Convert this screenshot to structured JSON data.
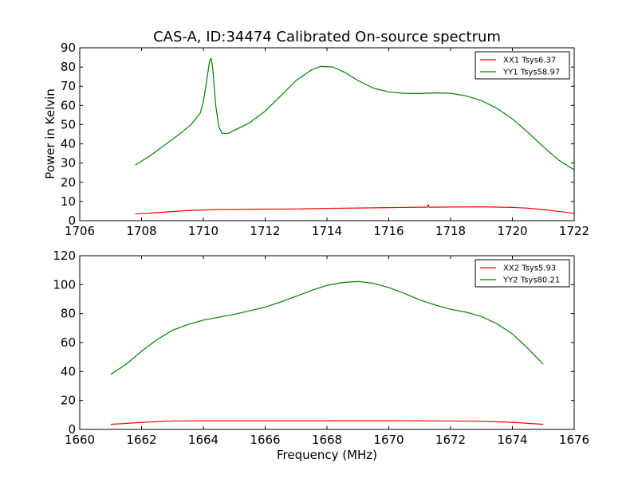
{
  "chart_data": [
    {
      "type": "line",
      "title": "CAS-A, ID:34474 Calibrated On-source spectrum",
      "xlabel": "",
      "ylabel": "Power in Kelvin",
      "xlim": [
        1706,
        1722
      ],
      "ylim": [
        0,
        90
      ],
      "xticks": [
        1706,
        1708,
        1710,
        1712,
        1714,
        1716,
        1718,
        1720,
        1722
      ],
      "yticks": [
        0,
        10,
        20,
        30,
        40,
        50,
        60,
        70,
        80,
        90
      ],
      "grid": false,
      "legend_position": "top-right",
      "series": [
        {
          "name": "XX1 Tsys6.37",
          "color": "#ff0000",
          "points": [
            [
              1707.8,
              3.5
            ],
            [
              1708.5,
              4.2
            ],
            [
              1709.5,
              5.3
            ],
            [
              1710.5,
              5.8
            ],
            [
              1712,
              6.0
            ],
            [
              1713,
              6.1
            ],
            [
              1714,
              6.4
            ],
            [
              1715,
              6.6
            ],
            [
              1716,
              6.8
            ],
            [
              1717,
              7.0
            ],
            [
              1717.25,
              7.0
            ],
            [
              1717.28,
              8.3
            ],
            [
              1717.31,
              7.0
            ],
            [
              1718,
              7.1
            ],
            [
              1719,
              7.2
            ],
            [
              1720,
              6.9
            ],
            [
              1720.5,
              6.5
            ],
            [
              1721,
              5.8
            ],
            [
              1721.5,
              4.8
            ],
            [
              1722,
              3.8
            ]
          ]
        },
        {
          "name": "YY1 Tsys58.97",
          "color": "#008000",
          "points": [
            [
              1707.8,
              29
            ],
            [
              1708.3,
              34
            ],
            [
              1708.8,
              40
            ],
            [
              1709.3,
              46
            ],
            [
              1709.6,
              50
            ],
            [
              1709.7,
              52
            ],
            [
              1709.9,
              56
            ],
            [
              1710.0,
              62
            ],
            [
              1710.1,
              72
            ],
            [
              1710.2,
              83
            ],
            [
              1710.25,
              84.5
            ],
            [
              1710.3,
              80
            ],
            [
              1710.4,
              60
            ],
            [
              1710.5,
              49
            ],
            [
              1710.6,
              45.5
            ],
            [
              1710.8,
              45.5
            ],
            [
              1711.0,
              47
            ],
            [
              1711.5,
              51
            ],
            [
              1712.0,
              57
            ],
            [
              1712.5,
              65
            ],
            [
              1713.0,
              73
            ],
            [
              1713.5,
              78.5
            ],
            [
              1713.8,
              80.3
            ],
            [
              1714.2,
              80
            ],
            [
              1714.6,
              77
            ],
            [
              1715.0,
              73
            ],
            [
              1715.5,
              69
            ],
            [
              1716.0,
              67
            ],
            [
              1716.5,
              66.3
            ],
            [
              1717.0,
              66.2
            ],
            [
              1717.5,
              66.5
            ],
            [
              1718.0,
              66.3
            ],
            [
              1718.5,
              65
            ],
            [
              1719.0,
              62.5
            ],
            [
              1719.5,
              58.5
            ],
            [
              1720.0,
              53
            ],
            [
              1720.5,
              46
            ],
            [
              1721.0,
              38.5
            ],
            [
              1721.5,
              31.5
            ],
            [
              1722.0,
              26.5
            ]
          ]
        }
      ]
    },
    {
      "type": "line",
      "title": "",
      "xlabel": "Frequency (MHz)",
      "ylabel": "",
      "xlim": [
        1660,
        1676
      ],
      "ylim": [
        0,
        120
      ],
      "xticks": [
        1660,
        1662,
        1664,
        1666,
        1668,
        1670,
        1672,
        1674,
        1676
      ],
      "yticks": [
        0,
        20,
        40,
        60,
        80,
        100,
        120
      ],
      "grid": false,
      "legend_position": "top-right",
      "series": [
        {
          "name": "XX2 Tsys5.93",
          "color": "#ff0000",
          "points": [
            [
              1661,
              3.5
            ],
            [
              1662,
              4.8
            ],
            [
              1663,
              5.8
            ],
            [
              1664,
              5.9
            ],
            [
              1666,
              5.9
            ],
            [
              1668,
              5.9
            ],
            [
              1669,
              6.0
            ],
            [
              1670,
              6.0
            ],
            [
              1671,
              5.9
            ],
            [
              1672,
              5.8
            ],
            [
              1673,
              5.6
            ],
            [
              1674,
              4.9
            ],
            [
              1675,
              3.5
            ]
          ]
        },
        {
          "name": "YY2 Tsys80.21",
          "color": "#008000",
          "points": [
            [
              1661,
              38
            ],
            [
              1661.5,
              45
            ],
            [
              1662,
              54
            ],
            [
              1662.5,
              62
            ],
            [
              1663,
              68.5
            ],
            [
              1663.5,
              72.5
            ],
            [
              1664,
              75.5
            ],
            [
              1664.5,
              77.5
            ],
            [
              1665,
              79.5
            ],
            [
              1665.5,
              82
            ],
            [
              1666,
              84.5
            ],
            [
              1666.5,
              88
            ],
            [
              1667,
              92
            ],
            [
              1667.5,
              96
            ],
            [
              1668,
              99.5
            ],
            [
              1668.5,
              101.5
            ],
            [
              1669,
              102.2
            ],
            [
              1669.5,
              101
            ],
            [
              1670,
              98
            ],
            [
              1670.5,
              94
            ],
            [
              1671,
              89.5
            ],
            [
              1671.5,
              86
            ],
            [
              1672,
              83
            ],
            [
              1672.5,
              81
            ],
            [
              1673,
              78
            ],
            [
              1673.5,
              73
            ],
            [
              1674,
              66
            ],
            [
              1674.5,
              56
            ],
            [
              1675,
              45
            ]
          ]
        }
      ]
    }
  ]
}
